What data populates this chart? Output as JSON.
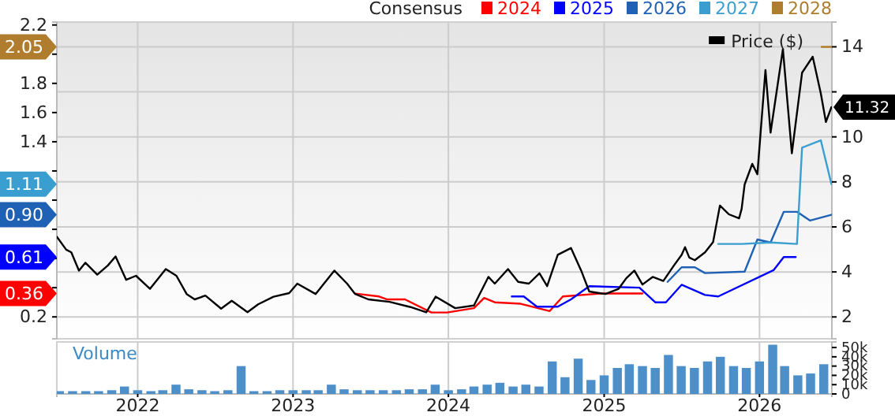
{
  "chart_data": [
    {
      "type": "line",
      "legend_title": "Consensus",
      "legend": "top right",
      "grid": true,
      "tick_labels": "y",
      "xlim": [
        "2021-06-25",
        "2026-06-20"
      ],
      "xticks": [
        "2022",
        "2023",
        "2024",
        "2025",
        "2026"
      ],
      "ylim": [
        0.05,
        2.22
      ],
      "yticks": [
        2.2,
        {
          "value": 2.0,
          "label": null
        },
        1.8,
        1.6,
        1.4,
        {
          "value": 1.2,
          "label": null
        },
        {
          "value": 1.0,
          "label": null
        },
        {
          "value": 0.8,
          "label": null
        },
        {
          "value": 0.6,
          "label": null
        },
        {
          "value": 0.4,
          "label": null
        },
        0.2
      ],
      "y2lim": [
        1.03,
        15.1
      ],
      "y2ticks": [
        2,
        4,
        6,
        8,
        10,
        {
          "value": 12,
          "label": null
        },
        14
      ],
      "annotations": [
        "2.05",
        "1.11",
        "0.90",
        "0.61",
        "0.36"
      ],
      "series": [
        {
          "name": "2024",
          "color": "#ff0000",
          "x": [
            "2023-05-27",
            "2023-07-22",
            "2023-08-09",
            "2023-09-21",
            "2023-11-22",
            "2023-12-29",
            "2024-03-01",
            "2024-03-25",
            "2024-04-19",
            "2024-06-19",
            "2024-08-26",
            "2024-09-26",
            "2024-12-22",
            "2025-04-01"
          ],
          "values": [
            0.36,
            0.34,
            0.32,
            0.32,
            0.23,
            0.23,
            0.26,
            0.33,
            0.3,
            0.29,
            0.24,
            0.34,
            0.36,
            0.36
          ]
        },
        {
          "name": "2025",
          "color": "#0000ff",
          "x": [
            "2024-05-29",
            "2024-06-26",
            "2024-07-27",
            "2024-09-14",
            "2024-10-15",
            "2024-11-27",
            "2025-03-25",
            "2025-05-01",
            "2025-05-26",
            "2025-07-02",
            "2025-08-26",
            "2025-09-26",
            "2026-02-03",
            "2026-02-27",
            "2026-03-27"
          ],
          "values": [
            0.34,
            0.34,
            0.27,
            0.27,
            0.32,
            0.41,
            0.4,
            0.3,
            0.3,
            0.42,
            0.35,
            0.34,
            0.52,
            0.61,
            0.61
          ]
        },
        {
          "name": "2026",
          "color": "#1f62b5",
          "x": [
            "2025-05-30",
            "2025-07-02",
            "2025-08-02",
            "2025-08-26",
            "2025-11-27",
            "2025-12-27",
            "2026-01-27",
            "2026-02-27",
            "2026-03-30",
            "2026-04-30",
            "2026-06-19"
          ],
          "values": [
            0.44,
            0.54,
            0.54,
            0.5,
            0.51,
            0.73,
            0.71,
            0.92,
            0.92,
            0.86,
            0.9
          ]
        },
        {
          "name": "2027",
          "color": "#3a9fd0",
          "x": [
            "2025-09-26",
            "2025-11-20",
            "2026-01-27",
            "2026-03-30",
            "2026-04-11",
            "2026-05-25",
            "2026-06-19"
          ],
          "values": [
            0.7,
            0.7,
            0.71,
            0.7,
            1.36,
            1.41,
            1.11
          ]
        },
        {
          "name": "2028",
          "color": "#b07d2e",
          "x": [
            "2026-05-27",
            "2026-06-19"
          ],
          "values": [
            2.05,
            2.05
          ]
        },
        {
          "name": "Price ($)",
          "color": "#000000",
          "axis": "y2",
          "x": [
            "2021-06-25",
            "2021-07-17",
            "2021-07-29",
            "2021-08-16",
            "2021-08-31",
            "2021-09-28",
            "2021-10-23",
            "2021-11-10",
            "2021-12-05",
            "2021-12-28",
            "2022-01-30",
            "2022-03-08",
            "2022-04-02",
            "2022-04-26",
            "2022-05-15",
            "2022-06-09",
            "2022-07-16",
            "2022-08-10",
            "2022-09-16",
            "2022-10-11",
            "2022-11-16",
            "2022-12-23",
            "2023-01-11",
            "2023-02-23",
            "2023-04-08",
            "2023-05-08",
            "2023-05-27",
            "2023-06-27",
            "2023-08-16",
            "2023-10-04",
            "2023-11-10",
            "2023-12-02",
            "2024-01-17",
            "2024-03-01",
            "2024-04-04",
            "2024-04-19",
            "2024-05-20",
            "2024-06-13",
            "2024-07-08",
            "2024-08-02",
            "2024-08-20",
            "2024-09-14",
            "2024-10-15",
            "2024-11-08",
            "2024-11-27",
            "2025-01-04",
            "2025-02-04",
            "2025-02-22",
            "2025-03-13",
            "2025-04-01",
            "2025-04-25",
            "2025-05-20",
            "2025-06-14",
            "2025-07-02",
            "2025-07-10",
            "2025-07-20",
            "2025-08-02",
            "2025-08-26",
            "2025-09-14",
            "2025-09-30",
            "2025-10-21",
            "2025-11-14",
            "2025-11-20",
            "2025-11-27",
            "2025-12-15",
            "2025-12-27",
            "2026-01-15",
            "2026-01-27",
            "2026-02-25",
            "2026-03-18",
            "2026-04-11",
            "2026-05-06",
            "2026-05-25",
            "2026-06-06",
            "2026-06-19"
          ],
          "values": [
            5.56,
            4.99,
            4.87,
            4.06,
            4.41,
            3.88,
            4.29,
            4.69,
            3.65,
            3.83,
            3.25,
            4.13,
            3.83,
            3.02,
            2.78,
            2.95,
            2.37,
            2.72,
            2.21,
            2.56,
            2.9,
            3.06,
            3.48,
            3.02,
            4.06,
            3.48,
            3.02,
            2.78,
            2.67,
            2.44,
            2.21,
            2.9,
            2.39,
            2.51,
            3.78,
            3.48,
            4.13,
            3.56,
            3.48,
            3.94,
            3.37,
            4.76,
            5.06,
            4.06,
            3.13,
            3.02,
            3.25,
            3.72,
            4.06,
            3.44,
            3.78,
            3.6,
            4.29,
            4.76,
            5.1,
            4.64,
            4.52,
            4.87,
            5.33,
            6.95,
            6.56,
            6.38,
            6.8,
            7.88,
            8.8,
            8.34,
            12.97,
            10.19,
            13.9,
            9.27,
            12.85,
            13.56,
            11.93,
            10.66,
            11.32
          ],
          "value_labels": [
            null,
            null,
            null,
            null,
            null,
            null,
            null,
            null,
            null,
            null,
            null,
            null,
            null,
            null,
            null,
            null,
            null,
            null,
            null,
            null,
            null,
            null,
            null,
            null,
            null,
            null,
            null,
            null,
            null,
            null,
            null,
            null,
            null,
            null,
            null,
            null,
            null,
            null,
            null,
            null,
            null,
            null,
            null,
            null,
            null,
            null,
            null,
            null,
            null,
            null,
            null,
            null,
            null,
            null,
            null,
            null,
            null,
            null,
            null,
            null,
            null,
            null,
            null,
            null,
            null,
            null,
            null,
            null,
            null,
            null,
            null,
            null,
            null,
            null,
            "11.32"
          ]
        }
      ]
    },
    {
      "type": "bar",
      "title": "Volume",
      "grid": "x",
      "xlim": [
        "2021-06-25",
        "2026-06-20"
      ],
      "xticks": [
        "2022",
        "2023",
        "2024",
        "2025",
        "2026"
      ],
      "ylim": [
        0,
        56000
      ],
      "yticks": [
        {
          "value": 0,
          "label": "0"
        },
        {
          "value": 10000,
          "label": "10k"
        },
        {
          "value": 20000,
          "label": "20k"
        },
        {
          "value": 30000,
          "label": "30k"
        },
        {
          "value": 40000,
          "label": "40k"
        },
        {
          "value": 50000,
          "label": "50k"
        }
      ],
      "x": [
        "2021-07",
        "2021-08",
        "2021-09",
        "2021-10",
        "2021-11",
        "2021-12",
        "2022-01",
        "2022-02",
        "2022-03",
        "2022-04",
        "2022-05",
        "2022-06",
        "2022-07",
        "2022-08",
        "2022-09",
        "2022-10",
        "2022-11",
        "2022-12",
        "2023-01",
        "2023-02",
        "2023-03",
        "2023-04",
        "2023-05",
        "2023-06",
        "2023-07",
        "2023-08",
        "2023-09",
        "2023-10",
        "2023-11",
        "2023-12",
        "2024-01",
        "2024-02",
        "2024-03",
        "2024-04",
        "2024-05",
        "2024-06",
        "2024-07",
        "2024-08",
        "2024-09",
        "2024-10",
        "2024-11",
        "2024-12",
        "2025-01",
        "2025-02",
        "2025-03",
        "2025-04",
        "2025-05",
        "2025-06",
        "2025-07",
        "2025-08",
        "2025-09",
        "2025-10",
        "2025-11",
        "2025-12",
        "2026-01",
        "2026-02",
        "2026-03",
        "2026-04",
        "2026-05",
        "2026-06"
      ],
      "series": [
        {
          "color": "#4d8fc9",
          "values": [
            3000,
            3000,
            3000,
            3000,
            4000,
            8000,
            4000,
            3000,
            4000,
            10000,
            5000,
            4000,
            3000,
            4000,
            30000,
            3000,
            3000,
            4000,
            4000,
            4000,
            4000,
            10000,
            5000,
            4000,
            4000,
            4000,
            4000,
            5000,
            5000,
            10000,
            4000,
            5000,
            8000,
            10000,
            12000,
            8000,
            10000,
            8000,
            35000,
            18000,
            38000,
            15000,
            20000,
            28000,
            32000,
            30000,
            28000,
            42000,
            30000,
            28000,
            35000,
            40000,
            30000,
            28000,
            35000,
            53000,
            30000,
            20000,
            22000,
            32000
          ]
        }
      ]
    }
  ]
}
